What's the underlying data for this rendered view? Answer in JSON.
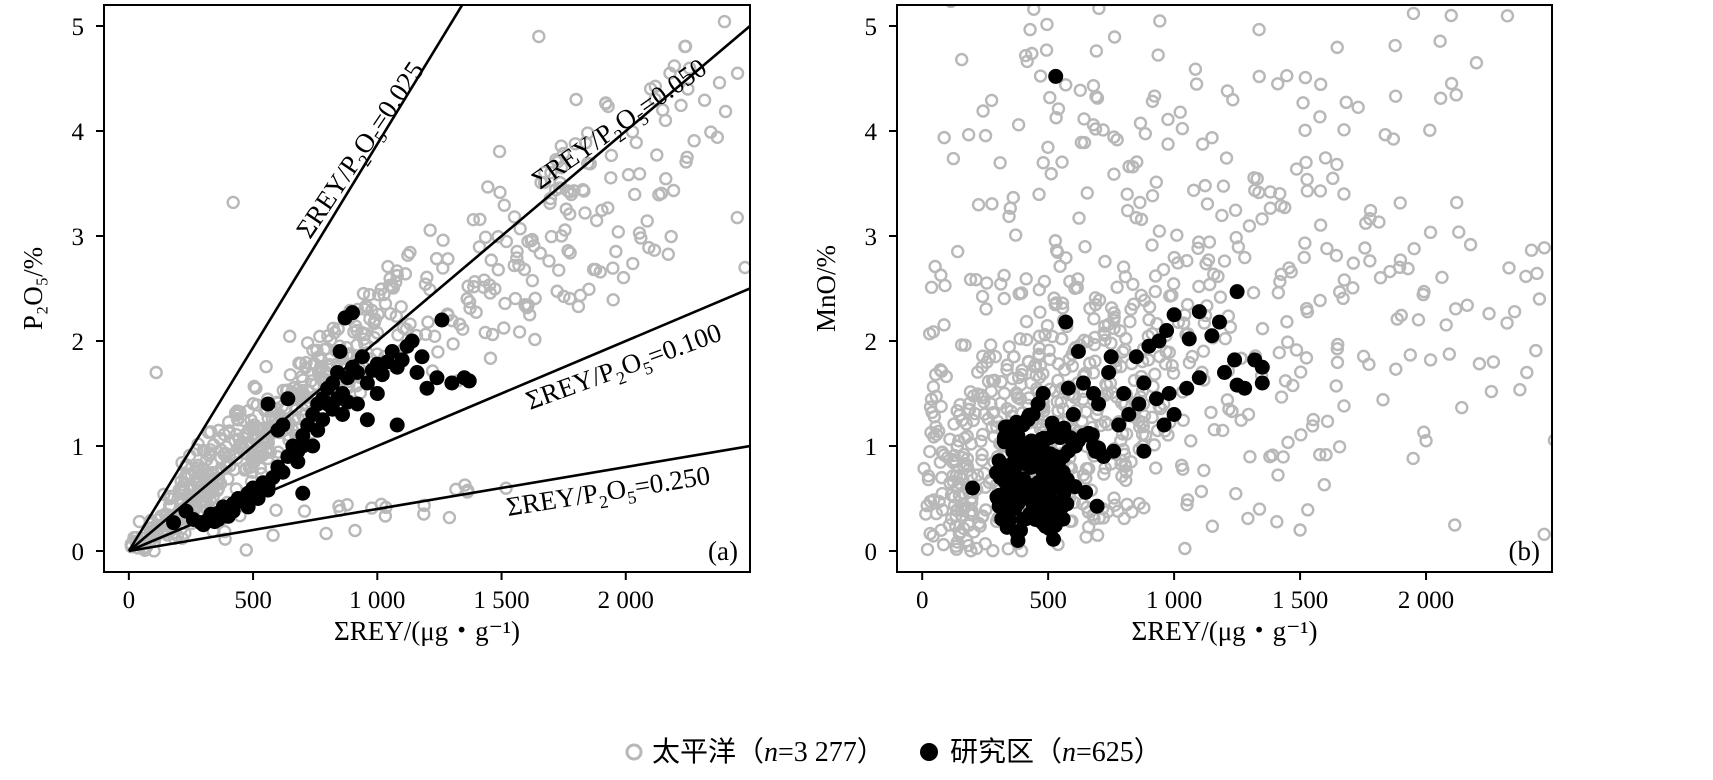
{
  "colors": {
    "pacific": "#b8b8b8",
    "study": "#000000"
  },
  "legend": {
    "pacific": {
      "prefix": "太平洋（",
      "n_label": "n",
      "suffix": "=3 277）"
    },
    "study": {
      "prefix": "研究区（",
      "n_label": "n",
      "suffix": "=625）"
    }
  },
  "chart_data": [
    {
      "type": "scatter",
      "panel": "(a)",
      "xlabel": "ΣREY/(μg・g⁻¹)",
      "ylabel": "P₂O₅/%",
      "xlim": [
        -100,
        2500
      ],
      "ylim": [
        -0.2,
        5.2
      ],
      "xticks": [
        0,
        500,
        1000,
        1500,
        2000
      ],
      "xtick_labels": [
        "0",
        "500",
        "1 000",
        "1 500",
        "2 000"
      ],
      "yticks": [
        0,
        1,
        2,
        3,
        4,
        5
      ],
      "ytick_labels": [
        "0",
        "1",
        "2",
        "3",
        "4",
        "5"
      ],
      "reference_lines": [
        {
          "ratio": 0.025,
          "label_main": "ΣREY/P",
          "label_sub": "2",
          "label_mid": "O",
          "label_sub2": "5",
          "label_end": "=0.025"
        },
        {
          "ratio": 0.05,
          "label_main": "ΣREY/P",
          "label_sub": "2",
          "label_mid": "O",
          "label_sub2": "5",
          "label_end": "=0.050"
        },
        {
          "ratio": 0.1,
          "label_main": "ΣREY/P",
          "label_sub": "2",
          "label_mid": "O",
          "label_sub2": "5",
          "label_end": "=0.100"
        },
        {
          "ratio": 0.25,
          "label_main": "ΣREY/P",
          "label_sub": "2",
          "label_mid": "O",
          "label_sub2": "5",
          "label_end": "=0.250"
        }
      ],
      "series": [
        {
          "name": "太平洋",
          "n": 3277,
          "marker": "open-circle",
          "clusters": [
            {
              "mx": 620,
              "my": 0.9,
              "sx": 330,
              "sy": 0.45,
              "count": 330,
              "slopeMin": 0.0016,
              "slopeMax": 0.0026
            },
            {
              "mx": 1700,
              "my": 2.9,
              "sx": 420,
              "sy": 0.7,
              "count": 160,
              "slopeMin": 0.0013,
              "slopeMax": 0.0022
            },
            {
              "mx": 260,
              "my": 0.35,
              "sx": 140,
              "sy": 0.2,
              "count": 150,
              "slopeMin": 0.0009,
              "slopeMax": 0.0035
            },
            {
              "mx": 900,
              "my": 0.35,
              "sx": 350,
              "sy": 0.1,
              "count": 25,
              "slopeMin": 0.0003,
              "slopeMax": 0.0005
            }
          ],
          "extra_points": [
            [
              420,
              3.32
            ],
            [
              110,
              1.7
            ],
            [
              1800,
              4.3
            ],
            [
              2250,
              4.4
            ],
            [
              1650,
              4.9
            ],
            [
              2480,
              2.7
            ],
            [
              2450,
              4.55
            ]
          ]
        },
        {
          "name": "研究区",
          "n": 625,
          "marker": "filled-circle",
          "points": [
            [
              180,
              0.27
            ],
            [
              230,
              0.38
            ],
            [
              260,
              0.3
            ],
            [
              290,
              0.27
            ],
            [
              300,
              0.25
            ],
            [
              320,
              0.3
            ],
            [
              330,
              0.35
            ],
            [
              345,
              0.28
            ],
            [
              360,
              0.36
            ],
            [
              380,
              0.42
            ],
            [
              400,
              0.33
            ],
            [
              420,
              0.45
            ],
            [
              440,
              0.5
            ],
            [
              460,
              0.47
            ],
            [
              480,
              0.55
            ],
            [
              500,
              0.6
            ],
            [
              520,
              0.52
            ],
            [
              540,
              0.65
            ],
            [
              560,
              0.62
            ],
            [
              580,
              0.7
            ],
            [
              600,
              0.8
            ],
            [
              620,
              0.75
            ],
            [
              640,
              0.9
            ],
            [
              660,
              1.0
            ],
            [
              680,
              0.95
            ],
            [
              700,
              1.1
            ],
            [
              720,
              1.2
            ],
            [
              740,
              1.3
            ],
            [
              760,
              1.15
            ],
            [
              780,
              1.45
            ],
            [
              800,
              1.55
            ],
            [
              820,
              1.6
            ],
            [
              840,
              1.7
            ],
            [
              860,
              1.5
            ],
            [
              880,
              1.65
            ],
            [
              900,
              1.75
            ],
            [
              920,
              1.7
            ],
            [
              940,
              1.85
            ],
            [
              960,
              1.6
            ],
            [
              980,
              1.72
            ],
            [
              1000,
              1.78
            ],
            [
              1020,
              1.68
            ],
            [
              1040,
              1.8
            ],
            [
              1060,
              1.9
            ],
            [
              1080,
              1.75
            ],
            [
              1100,
              1.82
            ],
            [
              1120,
              1.95
            ],
            [
              1140,
              2.0
            ],
            [
              1160,
              1.7
            ],
            [
              1180,
              1.85
            ],
            [
              1200,
              1.55
            ],
            [
              1240,
              1.65
            ],
            [
              1260,
              2.2
            ],
            [
              1300,
              1.6
            ],
            [
              1350,
              1.65
            ],
            [
              1370,
              1.62
            ],
            [
              870,
              2.22
            ],
            [
              900,
              2.27
            ],
            [
              850,
              1.9
            ],
            [
              600,
              1.15
            ],
            [
              620,
              1.2
            ],
            [
              560,
              1.4
            ],
            [
              640,
              1.45
            ],
            [
              700,
              0.55
            ],
            [
              740,
              1.0
            ],
            [
              780,
              1.25
            ],
            [
              820,
              1.35
            ],
            [
              860,
              1.3
            ],
            [
              960,
              1.25
            ],
            [
              1080,
              1.2
            ],
            [
              1000,
              1.5
            ],
            [
              920,
              1.4
            ],
            [
              700,
              1.0
            ],
            [
              680,
              0.85
            ],
            [
              520,
              0.5
            ],
            [
              560,
              0.58
            ],
            [
              480,
              0.42
            ],
            [
              420,
              0.38
            ],
            [
              360,
              0.3
            ],
            [
              760,
              1.4
            ],
            [
              800,
              1.4
            ],
            [
              840,
              1.45
            ],
            [
              880,
              1.42
            ]
          ]
        }
      ]
    },
    {
      "type": "scatter",
      "panel": "(b)",
      "xlabel": "ΣREY/(μg・g⁻¹)",
      "ylabel": "MnO/%",
      "xlim": [
        -100,
        2500
      ],
      "ylim": [
        -0.2,
        5.2
      ],
      "xticks": [
        0,
        500,
        1000,
        1500,
        2000
      ],
      "xtick_labels": [
        "0",
        "500",
        "1 000",
        "1 500",
        "2 000"
      ],
      "yticks": [
        0,
        1,
        2,
        3,
        4,
        5
      ],
      "ytick_labels": [
        "0",
        "1",
        "2",
        "3",
        "4",
        "5"
      ],
      "series": [
        {
          "name": "太平洋",
          "n": 3277,
          "marker": "open-circle",
          "clusters": [
            {
              "mx": 550,
              "my": 1.3,
              "sx": 300,
              "sy": 0.75,
              "count": 450
            },
            {
              "mx": 1500,
              "my": 2.1,
              "sx": 520,
              "sy": 0.8,
              "count": 170
            },
            {
              "mx": 150,
              "my": 0.5,
              "sx": 90,
              "sy": 0.5,
              "count": 130
            },
            {
              "mx": 1000,
              "my": 3.7,
              "sx": 600,
              "sy": 0.8,
              "count": 110
            },
            {
              "mx": 600,
              "my": 4.5,
              "sx": 450,
              "sy": 0.4,
              "count": 40
            }
          ],
          "extra_points": [
            [
              2200,
              4.65
            ],
            [
              2100,
              5.1
            ],
            [
              1950,
              5.12
            ],
            [
              2450,
              2.4
            ],
            [
              2400,
              1.7
            ],
            [
              2000,
              1.05
            ],
            [
              1500,
              0.2
            ]
          ]
        },
        {
          "name": "研究区",
          "n": 625,
          "marker": "filled-circle",
          "points": [
            [
              530,
              4.52
            ],
            [
              1250,
              2.47
            ],
            [
              1000,
              2.25
            ],
            [
              1100,
              2.28
            ],
            [
              1180,
              2.18
            ],
            [
              970,
              2.1
            ],
            [
              900,
              1.95
            ],
            [
              940,
              2.0
            ],
            [
              1060,
              2.02
            ],
            [
              1150,
              2.05
            ],
            [
              1320,
              1.82
            ],
            [
              1350,
              1.75
            ],
            [
              1250,
              1.58
            ],
            [
              1350,
              1.6
            ],
            [
              1240,
              1.82
            ],
            [
              1200,
              1.7
            ],
            [
              1100,
              1.65
            ],
            [
              1050,
              1.55
            ],
            [
              980,
              1.5
            ],
            [
              930,
              1.45
            ],
            [
              880,
              1.6
            ],
            [
              860,
              1.4
            ],
            [
              820,
              1.3
            ],
            [
              800,
              1.5
            ],
            [
              780,
              1.2
            ],
            [
              740,
              1.7
            ],
            [
              700,
              1.4
            ],
            [
              680,
              1.5
            ],
            [
              640,
              1.6
            ],
            [
              620,
              1.9
            ],
            [
              600,
              1.3
            ],
            [
              580,
              1.55
            ],
            [
              570,
              2.18
            ],
            [
              960,
              1.2
            ],
            [
              1000,
              1.3
            ],
            [
              850,
              1.85
            ],
            [
              750,
              1.85
            ],
            [
              480,
              1.5
            ],
            [
              460,
              1.4
            ],
            [
              440,
              1.3
            ],
            [
              420,
              1.25
            ],
            [
              400,
              1.2
            ],
            [
              380,
              1.1
            ],
            [
              330,
              1.18
            ],
            [
              360,
              0.95
            ],
            [
              300,
              0.5
            ],
            [
              310,
              0.7
            ],
            [
              340,
              0.6
            ],
            [
              350,
              0.4
            ],
            [
              380,
              0.45
            ],
            [
              400,
              0.5
            ],
            [
              420,
              0.55
            ],
            [
              440,
              0.6
            ],
            [
              460,
              0.65
            ],
            [
              480,
              0.7
            ],
            [
              500,
              0.75
            ],
            [
              520,
              0.8
            ],
            [
              540,
              0.85
            ],
            [
              560,
              0.9
            ],
            [
              580,
              0.95
            ],
            [
              600,
              1.0
            ],
            [
              620,
              1.05
            ],
            [
              640,
              1.1
            ],
            [
              660,
              1.12
            ],
            [
              680,
              1.0
            ],
            [
              700,
              0.98
            ],
            [
              500,
              0.3
            ],
            [
              450,
              0.3
            ],
            [
              400,
              0.3
            ],
            [
              380,
              0.1
            ],
            [
              330,
              0.35
            ],
            [
              200,
              0.6
            ],
            [
              720,
              0.9
            ],
            [
              760,
              0.95
            ],
            [
              880,
              0.95
            ],
            [
              1280,
              1.55
            ]
          ],
          "core_cluster": {
            "mx": 450,
            "my": 0.72,
            "sx": 95,
            "sy": 0.32,
            "count": 140
          }
        }
      ]
    }
  ]
}
